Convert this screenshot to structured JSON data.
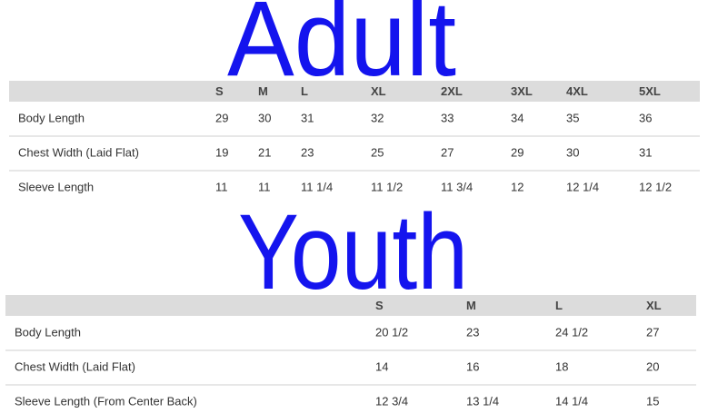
{
  "adult": {
    "title": "Adult",
    "columns": [
      "S",
      "M",
      "L",
      "XL",
      "2XL",
      "3XL",
      "4XL",
      "5XL"
    ],
    "rows": [
      [
        "Body Length",
        29,
        30,
        31,
        32,
        33,
        34,
        35,
        36
      ],
      [
        "Chest Width (Laid Flat)",
        19,
        21,
        23,
        25,
        27,
        29,
        30,
        31
      ],
      [
        "Sleeve Length",
        11,
        11,
        "11 1/4",
        "11 1/2",
        "11 3/4",
        12,
        "12 1/4",
        "12 1/2"
      ]
    ]
  },
  "youth": {
    "title": "Youth",
    "columns": [
      "S",
      "M",
      "L",
      "XL"
    ],
    "rows": [
      [
        "Body Length",
        "20 1/2",
        23,
        "24 1/2",
        27
      ],
      [
        "Chest Width (Laid Flat)",
        14,
        16,
        18,
        20
      ],
      [
        "Sleeve Length (From Center Back)",
        "12 3/4",
        "13 1/4",
        "14 1/4",
        15
      ]
    ]
  }
}
